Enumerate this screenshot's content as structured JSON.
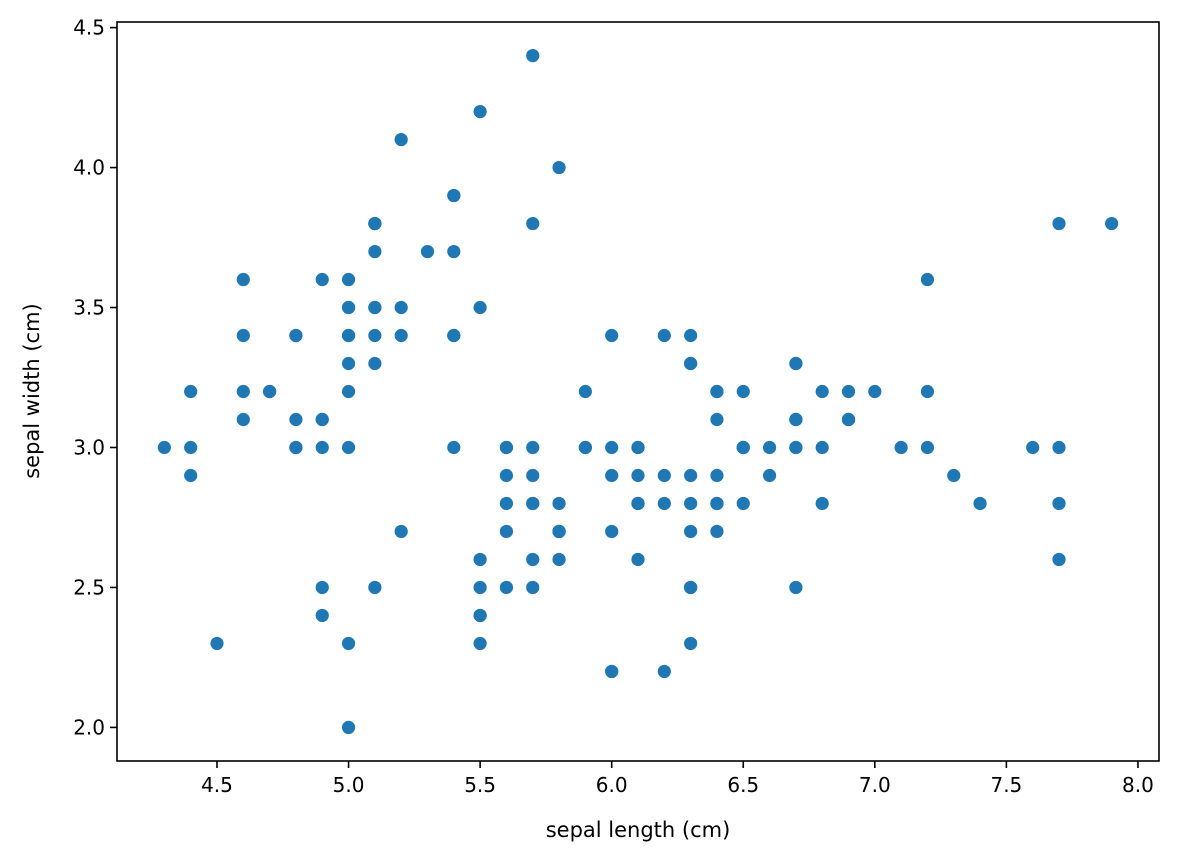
{
  "chart_data": {
    "type": "scatter",
    "title": "",
    "xlabel": "sepal length (cm)",
    "ylabel": "sepal width (cm)",
    "xlim": [
      4.12,
      8.08
    ],
    "ylim": [
      1.88,
      4.52
    ],
    "xticks": [
      4.5,
      5.0,
      5.5,
      6.0,
      6.5,
      7.0,
      7.5,
      8.0
    ],
    "yticks": [
      2.0,
      2.5,
      3.0,
      3.5,
      4.0,
      4.5
    ],
    "xtick_labels": [
      "4.5",
      "5.0",
      "5.5",
      "6.0",
      "6.5",
      "7.0",
      "7.5",
      "8.0"
    ],
    "ytick_labels": [
      "2.0",
      "2.5",
      "3.0",
      "3.5",
      "4.0",
      "4.5"
    ],
    "grid": false,
    "marker_color": "#1f77b4",
    "points": [
      [
        5.1,
        3.5
      ],
      [
        4.9,
        3.0
      ],
      [
        4.7,
        3.2
      ],
      [
        4.6,
        3.1
      ],
      [
        5.0,
        3.6
      ],
      [
        5.4,
        3.9
      ],
      [
        4.6,
        3.4
      ],
      [
        5.0,
        3.4
      ],
      [
        4.4,
        2.9
      ],
      [
        4.9,
        3.1
      ],
      [
        5.4,
        3.7
      ],
      [
        4.8,
        3.4
      ],
      [
        4.8,
        3.0
      ],
      [
        4.3,
        3.0
      ],
      [
        5.8,
        4.0
      ],
      [
        5.7,
        4.4
      ],
      [
        5.4,
        3.9
      ],
      [
        5.1,
        3.5
      ],
      [
        5.7,
        3.8
      ],
      [
        5.1,
        3.8
      ],
      [
        5.4,
        3.4
      ],
      [
        5.1,
        3.7
      ],
      [
        4.6,
        3.6
      ],
      [
        5.1,
        3.3
      ],
      [
        4.8,
        3.4
      ],
      [
        5.0,
        3.0
      ],
      [
        5.0,
        3.4
      ],
      [
        5.2,
        3.5
      ],
      [
        5.2,
        3.4
      ],
      [
        4.7,
        3.2
      ],
      [
        4.8,
        3.1
      ],
      [
        5.4,
        3.4
      ],
      [
        5.2,
        4.1
      ],
      [
        5.5,
        4.2
      ],
      [
        4.9,
        3.1
      ],
      [
        5.0,
        3.2
      ],
      [
        5.5,
        3.5
      ],
      [
        4.9,
        3.6
      ],
      [
        4.4,
        3.0
      ],
      [
        5.1,
        3.4
      ],
      [
        5.0,
        3.5
      ],
      [
        4.5,
        2.3
      ],
      [
        4.4,
        3.2
      ],
      [
        5.0,
        3.5
      ],
      [
        5.1,
        3.8
      ],
      [
        4.8,
        3.0
      ],
      [
        5.1,
        3.8
      ],
      [
        4.6,
        3.2
      ],
      [
        5.3,
        3.7
      ],
      [
        5.0,
        3.3
      ],
      [
        7.0,
        3.2
      ],
      [
        6.4,
        3.2
      ],
      [
        6.9,
        3.1
      ],
      [
        5.5,
        2.3
      ],
      [
        6.5,
        2.8
      ],
      [
        5.7,
        2.8
      ],
      [
        6.3,
        3.3
      ],
      [
        4.9,
        2.4
      ],
      [
        6.6,
        2.9
      ],
      [
        5.2,
        2.7
      ],
      [
        5.0,
        2.0
      ],
      [
        5.9,
        3.0
      ],
      [
        6.0,
        2.2
      ],
      [
        6.1,
        2.9
      ],
      [
        5.6,
        2.9
      ],
      [
        6.7,
        3.1
      ],
      [
        5.6,
        3.0
      ],
      [
        5.8,
        2.7
      ],
      [
        6.2,
        2.2
      ],
      [
        5.6,
        2.5
      ],
      [
        5.9,
        3.2
      ],
      [
        6.1,
        2.8
      ],
      [
        6.3,
        2.5
      ],
      [
        6.1,
        2.8
      ],
      [
        6.4,
        2.9
      ],
      [
        6.6,
        3.0
      ],
      [
        6.8,
        2.8
      ],
      [
        6.7,
        3.0
      ],
      [
        6.0,
        2.9
      ],
      [
        5.7,
        2.6
      ],
      [
        5.5,
        2.4
      ],
      [
        5.5,
        2.4
      ],
      [
        5.8,
        2.7
      ],
      [
        6.0,
        2.7
      ],
      [
        5.4,
        3.0
      ],
      [
        6.0,
        3.4
      ],
      [
        6.7,
        3.1
      ],
      [
        6.3,
        2.3
      ],
      [
        5.6,
        3.0
      ],
      [
        5.5,
        2.5
      ],
      [
        5.5,
        2.6
      ],
      [
        6.1,
        3.0
      ],
      [
        5.8,
        2.6
      ],
      [
        5.0,
        2.3
      ],
      [
        5.6,
        2.7
      ],
      [
        5.7,
        3.0
      ],
      [
        5.7,
        2.9
      ],
      [
        6.2,
        2.9
      ],
      [
        5.1,
        2.5
      ],
      [
        5.7,
        2.8
      ],
      [
        6.3,
        3.3
      ],
      [
        5.8,
        2.7
      ],
      [
        7.1,
        3.0
      ],
      [
        6.3,
        2.9
      ],
      [
        6.5,
        3.0
      ],
      [
        7.6,
        3.0
      ],
      [
        4.9,
        2.5
      ],
      [
        7.3,
        2.9
      ],
      [
        6.7,
        2.5
      ],
      [
        7.2,
        3.6
      ],
      [
        6.5,
        3.2
      ],
      [
        6.4,
        2.7
      ],
      [
        6.8,
        3.0
      ],
      [
        5.7,
        2.5
      ],
      [
        5.8,
        2.8
      ],
      [
        6.4,
        3.2
      ],
      [
        6.5,
        3.0
      ],
      [
        7.7,
        3.8
      ],
      [
        7.7,
        2.6
      ],
      [
        6.0,
        2.2
      ],
      [
        6.9,
        3.2
      ],
      [
        5.6,
        2.8
      ],
      [
        7.7,
        2.8
      ],
      [
        6.3,
        2.7
      ],
      [
        6.7,
        3.3
      ],
      [
        7.2,
        3.2
      ],
      [
        6.2,
        2.8
      ],
      [
        6.1,
        3.0
      ],
      [
        6.4,
        2.8
      ],
      [
        7.2,
        3.0
      ],
      [
        7.4,
        2.8
      ],
      [
        7.9,
        3.8
      ],
      [
        6.4,
        2.8
      ],
      [
        6.3,
        2.8
      ],
      [
        6.1,
        2.6
      ],
      [
        7.7,
        3.0
      ],
      [
        6.3,
        3.4
      ],
      [
        6.4,
        3.1
      ],
      [
        6.0,
        3.0
      ],
      [
        6.9,
        3.1
      ],
      [
        6.7,
        3.1
      ],
      [
        6.9,
        3.1
      ],
      [
        5.8,
        2.7
      ],
      [
        6.8,
        3.2
      ],
      [
        6.7,
        3.3
      ],
      [
        6.7,
        3.0
      ],
      [
        6.3,
        2.5
      ],
      [
        6.5,
        3.0
      ],
      [
        6.2,
        3.4
      ],
      [
        5.9,
        3.0
      ]
    ]
  }
}
